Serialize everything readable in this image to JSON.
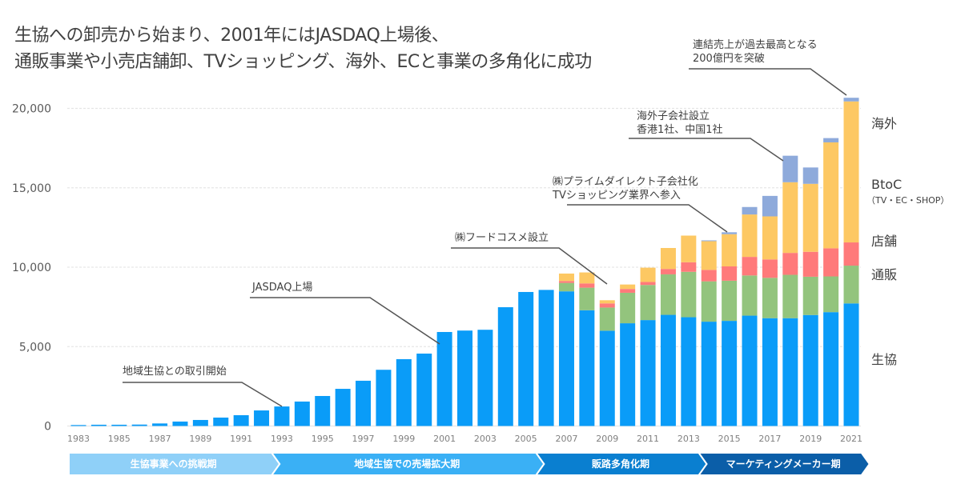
{
  "title": {
    "line1": "生協への卸売から始まり、2001年にはJASDAQ上場後、",
    "line2": "通販事業や小売店舗卸、TVショッピング、海外、ECと事業の多角化に成功"
  },
  "colors": {
    "coop": "#0a9cf8",
    "mailorder": "#93c47d",
    "store": "#ff7a7a",
    "btoc": "#fdc863",
    "overseas": "#8eaadb",
    "phase1": "#8fd0f8",
    "phase2": "#3ab0f5",
    "phase3": "#0a7fd0",
    "phase4": "#0b5ea8",
    "grid": "#e6e6e6",
    "leader": "#555555"
  },
  "chart_data": {
    "type": "bar",
    "stacked": true,
    "title": "",
    "xlabel": "",
    "ylabel": "",
    "ylim": [
      0,
      21000
    ],
    "grid": true,
    "legend_placement": "right (labels beside last bar)",
    "yticks": [
      0,
      5000,
      10000,
      15000,
      20000
    ],
    "ytick_labels": [
      "0",
      "5,000",
      "10,000",
      "15,000",
      "20,000"
    ],
    "categories": [
      "1983",
      "1984",
      "1985",
      "1986",
      "1987",
      "1988",
      "1989",
      "1990",
      "1991",
      "1992",
      "1993",
      "1994",
      "1995",
      "1996",
      "1997",
      "1998",
      "1999",
      "2000",
      "2001",
      "2002",
      "2003",
      "2004",
      "2005",
      "2006",
      "2007",
      "2008",
      "2009",
      "2010",
      "2011",
      "2012",
      "2013",
      "2014",
      "2015",
      "2016",
      "2017",
      "2018",
      "2019",
      "2020",
      "2021"
    ],
    "xtick_labels": [
      "1983",
      "1985",
      "1987",
      "1989",
      "1991",
      "1993",
      "1995",
      "1997",
      "1999",
      "2001",
      "2003",
      "2005",
      "2007",
      "2009",
      "2011",
      "2013",
      "2015",
      "2017",
      "2019",
      "2021"
    ],
    "series": [
      {
        "name": "生協",
        "key": "coop",
        "values": [
          60,
          80,
          80,
          90,
          160,
          280,
          380,
          530,
          680,
          980,
          1230,
          1540,
          1890,
          2340,
          2850,
          3540,
          4210,
          4560,
          5920,
          6010,
          6060,
          7480,
          8440,
          8570,
          8480,
          7290,
          6000,
          6470,
          6670,
          7000,
          6850,
          6570,
          6620,
          6950,
          6790,
          6790,
          6990,
          7170,
          7720
        ]
      },
      {
        "name": "通販",
        "key": "mailorder",
        "values": [
          0,
          0,
          0,
          0,
          0,
          0,
          0,
          0,
          0,
          0,
          0,
          0,
          0,
          0,
          0,
          0,
          0,
          0,
          0,
          0,
          0,
          0,
          0,
          0,
          530,
          1420,
          1460,
          1920,
          2210,
          2550,
          2860,
          2540,
          2530,
          2530,
          2540,
          2730,
          2410,
          2250,
          2380
        ]
      },
      {
        "name": "店舗",
        "key": "store",
        "values": [
          0,
          0,
          0,
          0,
          0,
          0,
          0,
          0,
          0,
          0,
          0,
          0,
          0,
          0,
          0,
          0,
          0,
          0,
          0,
          0,
          0,
          0,
          0,
          0,
          120,
          270,
          260,
          240,
          190,
          340,
          600,
          720,
          900,
          1170,
          1160,
          1380,
          1570,
          1770,
          1460
        ]
      },
      {
        "name": "BtoC",
        "sub": "（TV・EC・SHOP）",
        "key": "btoc",
        "values": [
          0,
          0,
          0,
          0,
          0,
          0,
          0,
          0,
          0,
          0,
          0,
          0,
          0,
          0,
          0,
          0,
          0,
          0,
          0,
          0,
          0,
          0,
          0,
          0,
          470,
          690,
          200,
          280,
          900,
          1320,
          1680,
          1810,
          2030,
          2670,
          2710,
          4450,
          4280,
          6670,
          8880
        ]
      },
      {
        "name": "海外",
        "key": "overseas",
        "values": [
          0,
          0,
          0,
          0,
          0,
          0,
          0,
          0,
          0,
          0,
          0,
          0,
          0,
          0,
          0,
          0,
          0,
          0,
          0,
          0,
          0,
          0,
          0,
          0,
          0,
          0,
          0,
          0,
          0,
          0,
          0,
          50,
          120,
          470,
          1290,
          1670,
          1030,
          270,
          230
        ]
      }
    ],
    "annotations": [
      {
        "lines": [
          "地域生協との取引開始"
        ],
        "target_year": "1993"
      },
      {
        "lines": [
          "JASDAQ上場"
        ],
        "target_year": "2001"
      },
      {
        "lines": [
          "㈱フードコスメ設立"
        ],
        "target_year": "2009"
      },
      {
        "lines": [
          "㈱プライムダイレクト子会社化",
          "TVショッピング業界へ参入"
        ],
        "target_year": "2015"
      },
      {
        "lines": [
          "海外子会社設立",
          "香港1社、中国1社"
        ],
        "target_year": "2018"
      },
      {
        "lines": [
          "連結売上が過去最高となる",
          "200億円を突破"
        ],
        "target_year": "2021"
      }
    ],
    "phases": [
      {
        "label": "生協事業への挑戦期",
        "from": "1983",
        "to": "1992",
        "color_key": "phase1"
      },
      {
        "label": "地域生協での売場拡大期",
        "from": "1993",
        "to": "2005",
        "color_key": "phase2"
      },
      {
        "label": "販路多角化期",
        "from": "2006",
        "to": "2013",
        "color_key": "phase3"
      },
      {
        "label": "マーケティングメーカー期",
        "from": "2014",
        "to": "2021",
        "color_key": "phase4"
      }
    ]
  }
}
